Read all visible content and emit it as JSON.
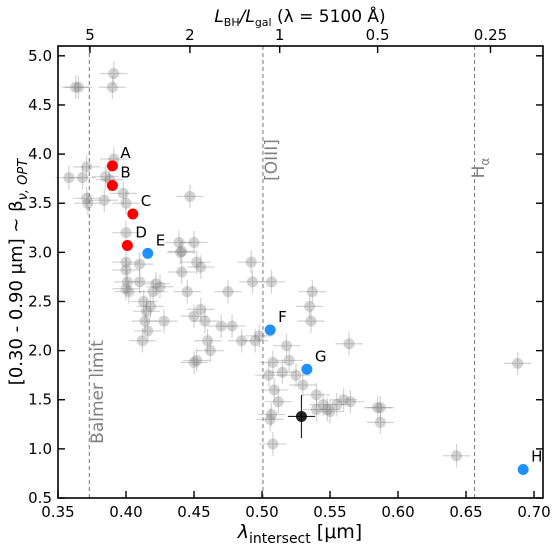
{
  "chart_data": {
    "type": "scatter",
    "xlabel": {
      "main": "λ",
      "sub": "intersect",
      "unit": " [μm]"
    },
    "ylabel": {
      "main": "[0.30 - 0.90 μm] ~ β",
      "sub": "ν, OPT"
    },
    "x2label": {
      "a": "L",
      "a_sub": "BH",
      "b": "/L",
      "b_sub": "gal",
      "c": " (λ = 5100 Å)"
    },
    "xlim": [
      0.35,
      0.7066
    ],
    "ylim": [
      0.5,
      5.1
    ],
    "xticks": [
      0.35,
      {
        "value": 0.4,
        "label": "0.40"
      },
      0.45,
      {
        "value": 0.5,
        "label": "0.50"
      },
      0.55,
      {
        "value": 0.6,
        "label": "0.60"
      },
      0.65,
      {
        "value": 0.7,
        "label": "0.70"
      }
    ],
    "yticks": [
      0.5,
      {
        "value": 1,
        "label": "1.0"
      },
      1.5,
      {
        "value": 2,
        "label": "2.0"
      },
      2.5,
      {
        "value": 3,
        "label": "3.0"
      },
      3.5,
      {
        "value": 4,
        "label": "4.0"
      },
      4.5,
      {
        "value": 5,
        "label": "5.0"
      }
    ],
    "x2ticks": [
      {
        "value": 0.3735,
        "label": "5"
      },
      {
        "value": 0.447,
        "label": "2"
      },
      {
        "value": 0.513,
        "label": "1"
      },
      {
        "value": 0.585,
        "label": "0.5"
      },
      {
        "value": 0.668,
        "label": "0.25"
      }
    ],
    "vlines": [
      {
        "x": 0.373,
        "label": "Balmer limit"
      },
      {
        "x": 0.5007,
        "label": "[OIII]"
      },
      {
        "x": 0.6563,
        "label": "H",
        "label_sub": "α"
      }
    ],
    "series": [
      {
        "color": "#808080",
        "opacity": 0.35,
        "xerr": 0.01,
        "yerr": 0.12,
        "x": [
          0.365,
          0.363,
          0.391,
          0.39,
          0.358,
          0.368,
          0.371,
          0.371,
          0.372,
          0.385,
          0.388,
          0.384,
          0.391,
          0.398,
          0.4,
          0.4,
          0.4,
          0.4,
          0.401,
          0.4,
          0.402,
          0.41,
          0.41,
          0.413,
          0.415,
          0.414,
          0.416,
          0.418,
          0.42,
          0.422,
          0.425,
          0.428,
          0.412,
          0.439,
          0.44,
          0.441,
          0.441,
          0.445,
          0.447,
          0.45,
          0.45,
          0.452,
          0.455,
          0.455,
          0.458,
          0.46,
          0.462,
          0.45,
          0.452,
          0.47,
          0.475,
          0.478,
          0.485,
          0.492,
          0.493,
          0.495,
          0.498,
          0.505,
          0.507,
          0.508,
          0.509,
          0.506,
          0.507,
          0.508,
          0.512,
          0.515,
          0.518,
          0.52,
          0.525,
          0.53,
          0.535,
          0.536,
          0.537,
          0.54,
          0.54,
          0.545,
          0.548,
          0.55,
          0.555,
          0.56,
          0.565,
          0.564,
          0.585,
          0.587,
          0.587,
          0.643,
          0.688
        ],
        "y": [
          4.68,
          4.68,
          4.82,
          4.68,
          3.76,
          3.76,
          3.87,
          3.55,
          3.5,
          3.77,
          3.74,
          3.53,
          3.95,
          3.6,
          3.5,
          3.2,
          2.9,
          2.82,
          2.7,
          2.63,
          2.6,
          2.88,
          2.7,
          2.5,
          2.4,
          2.3,
          2.2,
          2.45,
          2.6,
          2.68,
          2.65,
          2.3,
          2.1,
          3.1,
          3.0,
          3.01,
          2.8,
          2.6,
          3.57,
          3.1,
          2.35,
          2.9,
          2.85,
          2.42,
          2.3,
          2.1,
          2.0,
          1.88,
          1.9,
          2.25,
          2.6,
          2.25,
          2.1,
          2.9,
          2.7,
          2.1,
          2.15,
          1.75,
          2.7,
          1.88,
          1.6,
          1.3,
          1.35,
          1.05,
          1.48,
          1.78,
          2.05,
          1.9,
          1.75,
          1.65,
          2.45,
          2.3,
          2.6,
          1.55,
          1.4,
          1.45,
          1.4,
          1.38,
          1.45,
          1.5,
          1.48,
          2.07,
          1.42,
          1.42,
          1.27,
          0.93,
          1.87
        ]
      },
      {
        "color": "#000000",
        "opacity": 0.85,
        "xerr": 0.01,
        "yerr": 0.22,
        "x": [
          0.529
        ],
        "y": [
          1.33
        ]
      },
      {
        "color": "#ff0000",
        "opacity": 1,
        "x": [
          0.39,
          0.39,
          0.405,
          0.401
        ],
        "y": [
          3.88,
          3.68,
          3.39,
          3.07
        ],
        "labels": [
          "A",
          "B",
          "C",
          "D"
        ]
      },
      {
        "color": "#1e90ff",
        "opacity": 1,
        "x": [
          0.416,
          0.506,
          0.533,
          0.692
        ],
        "y": [
          2.99,
          2.21,
          1.81,
          0.79
        ],
        "labels": [
          "E",
          "F",
          "G",
          "H"
        ]
      }
    ]
  }
}
